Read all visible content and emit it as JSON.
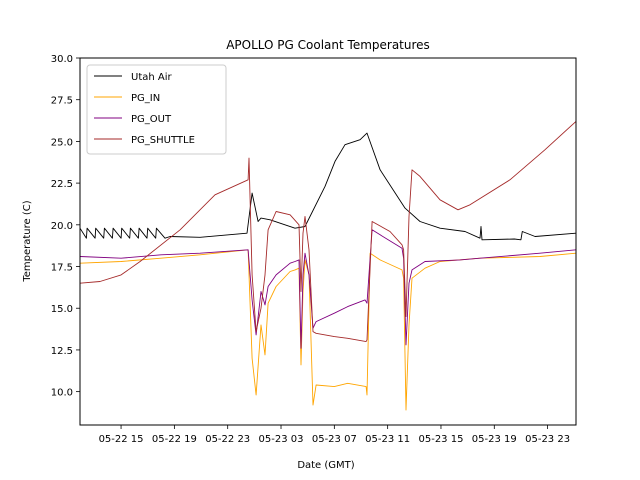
{
  "chart_data": {
    "type": "line",
    "title": "APOLLO PG Coolant Temperatures",
    "xlabel": "Date (GMT)",
    "ylabel": "Temperature (C)",
    "x_unit": "hours since 05-22 15:00 GMT",
    "xlim": [
      -3.08,
      34.13
    ],
    "ylim": [
      8.0,
      30.0
    ],
    "x_ticks": [
      {
        "value": 0,
        "label": "05-22 15"
      },
      {
        "value": 4,
        "label": "05-22 19"
      },
      {
        "value": 8,
        "label": "05-22 23"
      },
      {
        "value": 12,
        "label": "05-23 03"
      },
      {
        "value": 16,
        "label": "05-23 07"
      },
      {
        "value": 20,
        "label": "05-23 11"
      },
      {
        "value": 24,
        "label": "05-23 15"
      },
      {
        "value": 28,
        "label": "05-23 19"
      },
      {
        "value": 32,
        "label": "05-23 23"
      }
    ],
    "y_ticks": [
      {
        "value": 10.0,
        "label": "10.0"
      },
      {
        "value": 12.5,
        "label": "12.5"
      },
      {
        "value": 15.0,
        "label": "15.0"
      },
      {
        "value": 17.5,
        "label": "17.5"
      },
      {
        "value": 20.0,
        "label": "20.0"
      },
      {
        "value": 22.5,
        "label": "22.5"
      },
      {
        "value": 25.0,
        "label": "25.0"
      },
      {
        "value": 27.5,
        "label": "27.5"
      },
      {
        "value": 30.0,
        "label": "30.0"
      }
    ],
    "grid": false,
    "legend_position": "top-left",
    "series": [
      {
        "name": "Utah Air",
        "color": "#000000",
        "points": [
          [
            -3.08,
            19.8
          ],
          [
            -2.6,
            19.2
          ],
          [
            -2.55,
            19.8
          ],
          [
            -1.95,
            19.2
          ],
          [
            -1.9,
            19.8
          ],
          [
            -1.3,
            19.2
          ],
          [
            -1.25,
            19.8
          ],
          [
            -0.65,
            19.2
          ],
          [
            -0.6,
            19.8
          ],
          [
            0.0,
            19.2
          ],
          [
            0.05,
            19.8
          ],
          [
            0.65,
            19.2
          ],
          [
            0.7,
            19.8
          ],
          [
            1.3,
            19.2
          ],
          [
            1.35,
            19.8
          ],
          [
            1.95,
            19.2
          ],
          [
            2.0,
            19.8
          ],
          [
            2.6,
            19.2
          ],
          [
            2.65,
            19.8
          ],
          [
            3.3,
            19.2
          ],
          [
            3.68,
            19.3
          ],
          [
            5.93,
            19.25
          ],
          [
            9.45,
            19.5
          ],
          [
            9.83,
            21.9
          ],
          [
            10.28,
            20.2
          ],
          [
            10.5,
            20.4
          ],
          [
            11.18,
            20.3
          ],
          [
            13.05,
            19.8
          ],
          [
            13.8,
            19.9
          ],
          [
            15.3,
            22.3
          ],
          [
            16.05,
            23.8
          ],
          [
            16.8,
            24.8
          ],
          [
            17.93,
            25.1
          ],
          [
            18.45,
            25.5
          ],
          [
            19.43,
            23.3
          ],
          [
            21.3,
            21.0
          ],
          [
            22.43,
            20.2
          ],
          [
            23.93,
            19.8
          ],
          [
            25.8,
            19.6
          ],
          [
            26.93,
            19.2
          ],
          [
            27.0,
            19.9
          ],
          [
            27.08,
            19.1
          ],
          [
            29.5,
            19.15
          ],
          [
            30.0,
            19.1
          ],
          [
            30.1,
            19.6
          ],
          [
            31.06,
            19.3
          ],
          [
            34.13,
            19.5
          ]
        ]
      },
      {
        "name": "PG_IN",
        "color": "#ffa500",
        "points": [
          [
            -3.08,
            17.7
          ],
          [
            0.0,
            17.8
          ],
          [
            3.0,
            18.0
          ],
          [
            5.93,
            18.2
          ],
          [
            9.53,
            18.5
          ],
          [
            9.83,
            12.0
          ],
          [
            10.13,
            9.8
          ],
          [
            10.5,
            14.0
          ],
          [
            10.8,
            12.2
          ],
          [
            11.03,
            15.3
          ],
          [
            11.63,
            16.3
          ],
          [
            12.68,
            17.2
          ],
          [
            13.05,
            17.3
          ],
          [
            13.35,
            17.4
          ],
          [
            13.5,
            11.6
          ],
          [
            13.65,
            16.0
          ],
          [
            13.8,
            17.9
          ],
          [
            14.1,
            17.0
          ],
          [
            14.4,
            9.2
          ],
          [
            14.63,
            10.4
          ],
          [
            16.0,
            10.3
          ],
          [
            17.0,
            10.5
          ],
          [
            18.38,
            10.3
          ],
          [
            18.45,
            9.8
          ],
          [
            18.68,
            18.3
          ],
          [
            19.43,
            17.9
          ],
          [
            21.08,
            17.3
          ],
          [
            21.2,
            16.8
          ],
          [
            21.38,
            8.9
          ],
          [
            21.6,
            14.0
          ],
          [
            21.83,
            16.8
          ],
          [
            22.8,
            17.4
          ],
          [
            23.93,
            17.8
          ],
          [
            26.93,
            18.0
          ],
          [
            31.43,
            18.1
          ],
          [
            34.13,
            18.3
          ]
        ]
      },
      {
        "name": "PG_OUT",
        "color": "#800080",
        "points": [
          [
            -3.08,
            18.1
          ],
          [
            0.0,
            18.0
          ],
          [
            3.0,
            18.2
          ],
          [
            5.93,
            18.3
          ],
          [
            9.53,
            18.5
          ],
          [
            9.83,
            15.5
          ],
          [
            10.13,
            13.4
          ],
          [
            10.5,
            16.0
          ],
          [
            10.8,
            15.2
          ],
          [
            11.03,
            16.3
          ],
          [
            11.63,
            17.0
          ],
          [
            12.68,
            17.7
          ],
          [
            13.05,
            17.8
          ],
          [
            13.35,
            17.9
          ],
          [
            13.5,
            12.6
          ],
          [
            13.65,
            17.0
          ],
          [
            13.8,
            18.3
          ],
          [
            14.1,
            17.0
          ],
          [
            14.4,
            13.8
          ],
          [
            14.63,
            14.2
          ],
          [
            16.0,
            14.7
          ],
          [
            17.0,
            15.1
          ],
          [
            18.3,
            15.5
          ],
          [
            18.45,
            15.3
          ],
          [
            18.83,
            19.7
          ],
          [
            19.43,
            19.4
          ],
          [
            21.08,
            18.6
          ],
          [
            21.2,
            18.0
          ],
          [
            21.38,
            12.8
          ],
          [
            21.6,
            16.5
          ],
          [
            21.83,
            17.3
          ],
          [
            22.8,
            17.8
          ],
          [
            25.43,
            17.9
          ],
          [
            26.93,
            18.0
          ],
          [
            31.43,
            18.3
          ],
          [
            34.13,
            18.5
          ]
        ]
      },
      {
        "name": "PG_SHUTTLE",
        "color": "#a52a2a",
        "points": [
          [
            -3.08,
            16.5
          ],
          [
            -1.58,
            16.6
          ],
          [
            0.0,
            17.0
          ],
          [
            1.43,
            17.8
          ],
          [
            4.43,
            19.7
          ],
          [
            7.05,
            21.8
          ],
          [
            9.53,
            22.7
          ],
          [
            9.6,
            24.0
          ],
          [
            9.83,
            17.0
          ],
          [
            10.13,
            13.6
          ],
          [
            10.5,
            15.0
          ],
          [
            10.8,
            17.0
          ],
          [
            11.03,
            19.7
          ],
          [
            11.63,
            20.8
          ],
          [
            12.68,
            20.6
          ],
          [
            13.35,
            20.0
          ],
          [
            13.5,
            16.0
          ],
          [
            13.65,
            19.5
          ],
          [
            13.8,
            20.5
          ],
          [
            14.1,
            18.5
          ],
          [
            14.4,
            13.6
          ],
          [
            14.63,
            13.5
          ],
          [
            16.0,
            13.3
          ],
          [
            17.0,
            13.2
          ],
          [
            18.38,
            13.0
          ],
          [
            18.45,
            13.1
          ],
          [
            18.83,
            20.2
          ],
          [
            20.18,
            19.6
          ],
          [
            21.08,
            18.8
          ],
          [
            21.2,
            18.5
          ],
          [
            21.38,
            14.5
          ],
          [
            21.6,
            20.5
          ],
          [
            21.83,
            23.3
          ],
          [
            22.43,
            22.9
          ],
          [
            23.93,
            21.5
          ],
          [
            25.28,
            20.9
          ],
          [
            26.18,
            21.2
          ],
          [
            29.18,
            22.7
          ],
          [
            31.8,
            24.5
          ],
          [
            34.13,
            26.2
          ]
        ]
      }
    ]
  }
}
